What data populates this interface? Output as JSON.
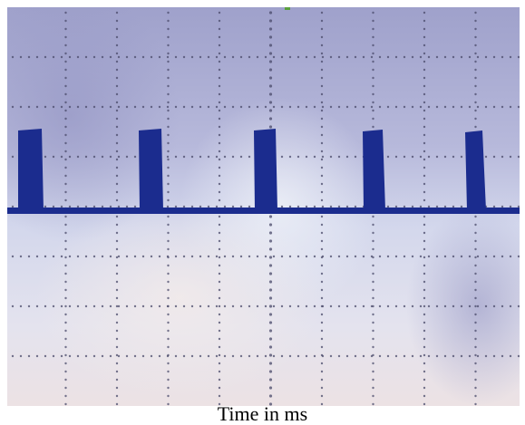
{
  "caption": "Time in ms",
  "scope": {
    "grid_divisions_x": 10,
    "grid_divisions_y": 8,
    "pulse_count": 5
  },
  "colors": {
    "trace": "#1b2c8e",
    "grid_dots": "#4a4a6a",
    "screen_top": "#9d9ec8",
    "screen_mid": "#cfd3ea",
    "screen_bottom": "#e9e1e6"
  }
}
